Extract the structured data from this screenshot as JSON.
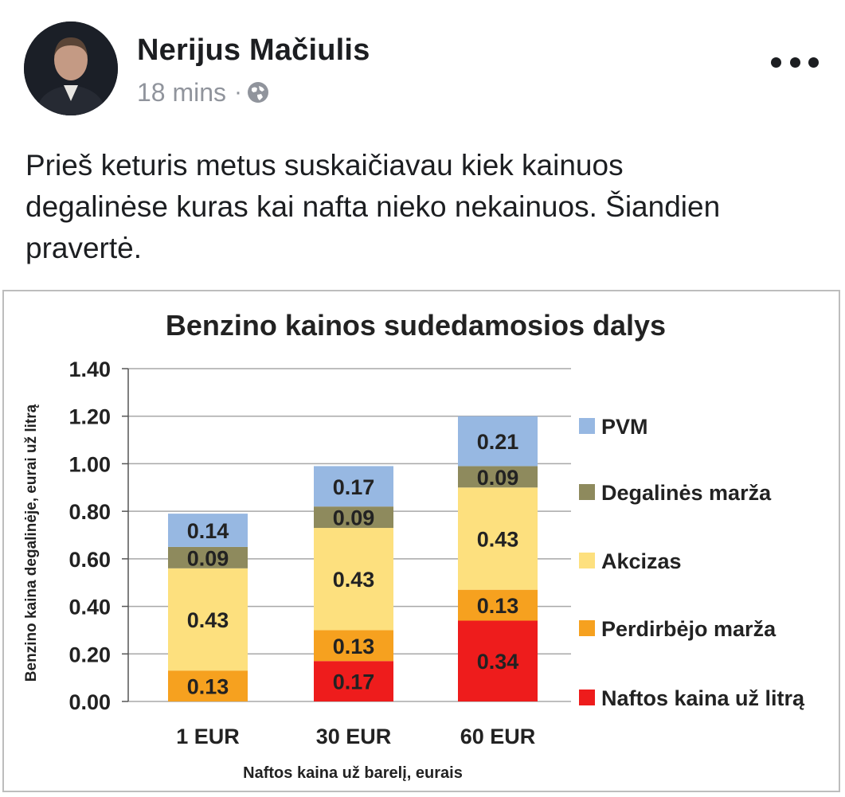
{
  "post": {
    "author_name": "Nerijus Mačiulis",
    "timestamp": "18 mins",
    "separator": "·",
    "privacy_icon": "globe-icon",
    "more_icon": "more-options-icon",
    "text_lines": [
      "Prieš keturis metus suskaičiavau kiek kainuos",
      "degalinėse kuras kai nafta nieko nekainuos. Šiandien",
      "pravertė."
    ]
  },
  "chart_data": {
    "type": "bar",
    "stacked": true,
    "title": "Benzino kainos sudedamosios dalys",
    "xlabel": "Naftos kaina už barelį, eurais",
    "ylabel": "Benzino kaina degalinėje, eurai už litrą",
    "ylim": [
      0,
      1.4
    ],
    "yticks": [
      "0.00",
      "0.20",
      "0.40",
      "0.60",
      "0.80",
      "1.00",
      "1.20",
      "1.40"
    ],
    "grid": true,
    "legend_position": "right",
    "categories": [
      "1 EUR",
      "30 EUR",
      "60 EUR"
    ],
    "series": [
      {
        "name": "Naftos kaina už litrą",
        "color": "#ee1c1c",
        "values": [
          0.0,
          0.17,
          0.34
        ],
        "labels": [
          "",
          "0.17",
          "0.34"
        ]
      },
      {
        "name": "Perdirbėjo marža",
        "color": "#f6a11f",
        "values": [
          0.13,
          0.13,
          0.13
        ],
        "labels": [
          "0.13",
          "0.13",
          "0.13"
        ]
      },
      {
        "name": "Akcizas",
        "color": "#fde07e",
        "values": [
          0.43,
          0.43,
          0.43
        ],
        "labels": [
          "0.43",
          "0.43",
          "0.43"
        ]
      },
      {
        "name": "Degalinės marža",
        "color": "#8e8a5d",
        "values": [
          0.09,
          0.09,
          0.09
        ],
        "labels": [
          "0.09",
          "0.09",
          "0.09"
        ]
      },
      {
        "name": "PVM",
        "color": "#97b8e2",
        "values": [
          0.14,
          0.17,
          0.21
        ],
        "labels": [
          "0.14",
          "0.17",
          "0.21"
        ]
      }
    ],
    "legend_order": [
      "PVM",
      "Degalinės marža",
      "Akcizas",
      "Perdirbėjo marža",
      "Naftos kaina už litrą"
    ]
  }
}
